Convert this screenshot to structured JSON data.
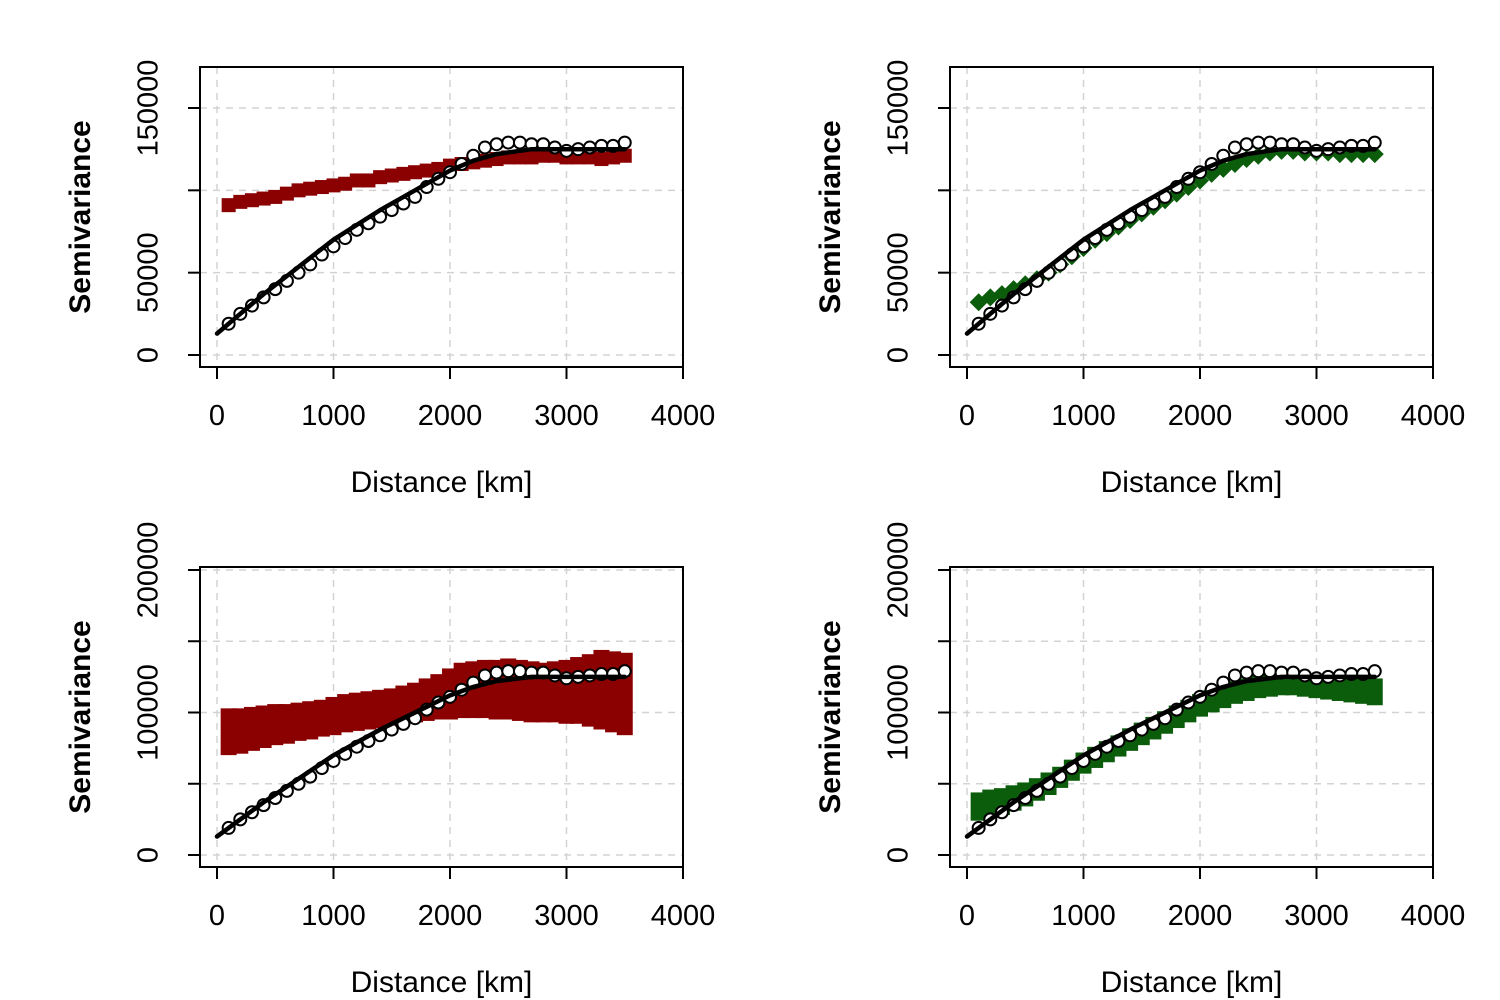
{
  "chart_data": [
    {
      "type": "scatter",
      "panel": "top-left",
      "xlabel": "Distance [km]",
      "ylabel": "Semivariance",
      "xlim": [
        0,
        4000
      ],
      "ylim": [
        0,
        150000
      ],
      "xticks": [
        0,
        1000,
        2000,
        3000,
        4000
      ],
      "xtick_labels": [
        "0",
        "1000",
        "2000",
        "3000",
        "4000"
      ],
      "yticks": [
        0,
        50000,
        100000,
        150000
      ],
      "ytick_labels": [
        "0",
        "50000",
        "",
        "150000"
      ],
      "grid": true,
      "series": [
        {
          "marker": "square",
          "color": "#8b0000",
          "band": false,
          "x": [
            100,
            200,
            300,
            400,
            500,
            600,
            700,
            800,
            900,
            1000,
            1100,
            1200,
            1300,
            1400,
            1500,
            1600,
            1700,
            1800,
            1900,
            2000,
            2100,
            2200,
            2300,
            2400,
            2500,
            2600,
            2700,
            2800,
            2900,
            3000,
            3100,
            3200,
            3300,
            3400,
            3500
          ],
          "y": [
            91000,
            93000,
            94000,
            95000,
            96000,
            98000,
            100000,
            101000,
            102000,
            103000,
            104000,
            106000,
            106000,
            108000,
            109000,
            110000,
            111000,
            112000,
            113000,
            115000,
            116000,
            117000,
            118000,
            119000,
            120000,
            120000,
            120000,
            121000,
            121000,
            120000,
            120000,
            120000,
            119000,
            120000,
            121000
          ]
        },
        {
          "marker": "circle",
          "color": "#000000",
          "band": false,
          "x": [
            100,
            200,
            300,
            400,
            500,
            600,
            700,
            800,
            900,
            1000,
            1100,
            1200,
            1300,
            1400,
            1500,
            1600,
            1700,
            1800,
            1900,
            2000,
            2100,
            2200,
            2300,
            2400,
            2500,
            2600,
            2700,
            2800,
            2900,
            3000,
            3100,
            3200,
            3300,
            3400,
            3500
          ],
          "y": [
            19000,
            25000,
            30000,
            35000,
            40000,
            45000,
            50000,
            55000,
            61000,
            66000,
            71000,
            76000,
            80000,
            84000,
            88000,
            92000,
            96000,
            102000,
            107000,
            111000,
            116000,
            121000,
            126000,
            128000,
            129000,
            129000,
            128000,
            128000,
            126000,
            124000,
            125000,
            126000,
            127000,
            127000,
            129000
          ]
        },
        {
          "marker": "line",
          "color": "#000000",
          "band": false,
          "x": [
            0,
            200,
            400,
            600,
            800,
            1000,
            1200,
            1400,
            1600,
            1800,
            2000,
            2200,
            2400,
            2600,
            2700,
            3500
          ],
          "y": [
            13000,
            25000,
            37000,
            48000,
            59000,
            70000,
            79000,
            88000,
            96000,
            104000,
            112000,
            118000,
            122000,
            124000,
            125000,
            125000
          ]
        }
      ]
    },
    {
      "type": "scatter",
      "panel": "top-right",
      "xlabel": "Distance [km]",
      "ylabel": "Semivariance",
      "xlim": [
        0,
        4000
      ],
      "ylim": [
        0,
        150000
      ],
      "xticks": [
        0,
        1000,
        2000,
        3000,
        4000
      ],
      "xtick_labels": [
        "0",
        "1000",
        "2000",
        "3000",
        "4000"
      ],
      "yticks": [
        0,
        50000,
        100000,
        150000
      ],
      "ytick_labels": [
        "0",
        "50000",
        "",
        "150000"
      ],
      "grid": true,
      "series": [
        {
          "marker": "diamond",
          "color": "#0b5d0b",
          "band": false,
          "x": [
            100,
            200,
            300,
            400,
            500,
            600,
            700,
            800,
            900,
            1000,
            1100,
            1200,
            1300,
            1400,
            1500,
            1600,
            1700,
            1800,
            1900,
            2000,
            2100,
            2200,
            2300,
            2400,
            2500,
            2600,
            2700,
            2800,
            2900,
            3000,
            3100,
            3200,
            3300,
            3400,
            3500
          ],
          "y": [
            32000,
            35000,
            37000,
            40000,
            43000,
            46000,
            50000,
            55000,
            60000,
            65000,
            70000,
            74000,
            78000,
            82000,
            86000,
            90000,
            94000,
            98000,
            102000,
            106000,
            110000,
            113000,
            116000,
            119000,
            121000,
            123000,
            124000,
            124000,
            123000,
            123000,
            123000,
            122000,
            122000,
            122000,
            122000
          ]
        },
        {
          "marker": "circle",
          "color": "#000000",
          "band": false,
          "x": [
            100,
            200,
            300,
            400,
            500,
            600,
            700,
            800,
            900,
            1000,
            1100,
            1200,
            1300,
            1400,
            1500,
            1600,
            1700,
            1800,
            1900,
            2000,
            2100,
            2200,
            2300,
            2400,
            2500,
            2600,
            2700,
            2800,
            2900,
            3000,
            3100,
            3200,
            3300,
            3400,
            3500
          ],
          "y": [
            19000,
            25000,
            30000,
            35000,
            40000,
            45000,
            50000,
            55000,
            61000,
            66000,
            71000,
            76000,
            80000,
            84000,
            88000,
            92000,
            96000,
            102000,
            107000,
            111000,
            116000,
            121000,
            126000,
            128000,
            129000,
            129000,
            128000,
            128000,
            126000,
            124000,
            125000,
            126000,
            127000,
            127000,
            129000
          ]
        },
        {
          "marker": "line",
          "color": "#000000",
          "band": false,
          "x": [
            0,
            200,
            400,
            600,
            800,
            1000,
            1200,
            1400,
            1600,
            1800,
            2000,
            2200,
            2400,
            2600,
            2700,
            3500
          ],
          "y": [
            13000,
            25000,
            37000,
            48000,
            59000,
            70000,
            79000,
            88000,
            96000,
            104000,
            112000,
            118000,
            122000,
            124000,
            125000,
            125000
          ]
        }
      ]
    },
    {
      "type": "scatter",
      "panel": "bottom-left",
      "xlabel": "Distance [km]",
      "ylabel": "Semivariance",
      "xlim": [
        0,
        4000
      ],
      "ylim": [
        0,
        200000
      ],
      "xticks": [
        0,
        1000,
        2000,
        3000,
        4000
      ],
      "xtick_labels": [
        "0",
        "1000",
        "2000",
        "3000",
        "4000"
      ],
      "yticks": [
        0,
        50000,
        100000,
        150000,
        200000
      ],
      "ytick_labels": [
        "0",
        "",
        "100000",
        "",
        "200000"
      ],
      "grid": true,
      "series": [
        {
          "marker": "square",
          "color": "#8b0000",
          "band": true,
          "x": [
            100,
            200,
            300,
            400,
            500,
            600,
            700,
            800,
            900,
            1000,
            1100,
            1200,
            1300,
            1400,
            1500,
            1600,
            1700,
            1800,
            1900,
            2000,
            2100,
            2200,
            2300,
            2400,
            2500,
            2600,
            2700,
            2800,
            2900,
            3000,
            3100,
            3200,
            3300,
            3400,
            3500
          ],
          "ymin": [
            75000,
            76000,
            78000,
            80000,
            82000,
            83000,
            85000,
            86000,
            88000,
            89000,
            91000,
            92000,
            93000,
            94000,
            96000,
            97000,
            98000,
            99000,
            100000,
            100000,
            101000,
            101000,
            101000,
            100000,
            100000,
            99000,
            98000,
            98000,
            98000,
            97000,
            97000,
            95000,
            93000,
            91000,
            89000
          ],
          "ymax": [
            98000,
            98000,
            99000,
            100000,
            101000,
            101000,
            102000,
            103000,
            104000,
            106000,
            108000,
            109000,
            110000,
            111000,
            112000,
            114000,
            116000,
            119000,
            122000,
            126000,
            130000,
            131000,
            132000,
            132000,
            133000,
            132000,
            131000,
            130000,
            131000,
            132000,
            134000,
            136000,
            139000,
            138000,
            137000
          ]
        },
        {
          "marker": "circle",
          "color": "#000000",
          "band": false,
          "x": [
            100,
            200,
            300,
            400,
            500,
            600,
            700,
            800,
            900,
            1000,
            1100,
            1200,
            1300,
            1400,
            1500,
            1600,
            1700,
            1800,
            1900,
            2000,
            2100,
            2200,
            2300,
            2400,
            2500,
            2600,
            2700,
            2800,
            2900,
            3000,
            3100,
            3200,
            3300,
            3400,
            3500
          ],
          "y": [
            19000,
            25000,
            30000,
            35000,
            40000,
            45000,
            50000,
            55000,
            61000,
            66000,
            71000,
            76000,
            80000,
            84000,
            88000,
            92000,
            96000,
            102000,
            107000,
            111000,
            116000,
            121000,
            126000,
            128000,
            129000,
            129000,
            128000,
            128000,
            126000,
            124000,
            125000,
            126000,
            127000,
            127000,
            129000
          ]
        },
        {
          "marker": "line",
          "color": "#000000",
          "band": false,
          "x": [
            0,
            200,
            400,
            600,
            800,
            1000,
            1200,
            1400,
            1600,
            1800,
            2000,
            2200,
            2400,
            2600,
            2700,
            3500
          ],
          "y": [
            13000,
            25000,
            37000,
            48000,
            59000,
            70000,
            79000,
            88000,
            96000,
            104000,
            112000,
            118000,
            122000,
            124000,
            125000,
            125000
          ]
        }
      ]
    },
    {
      "type": "scatter",
      "panel": "bottom-right",
      "xlabel": "Distance [km]",
      "ylabel": "Semivariance",
      "xlim": [
        0,
        4000
      ],
      "ylim": [
        0,
        200000
      ],
      "xticks": [
        0,
        1000,
        2000,
        3000,
        4000
      ],
      "xtick_labels": [
        "0",
        "1000",
        "2000",
        "3000",
        "4000"
      ],
      "yticks": [
        0,
        50000,
        100000,
        150000,
        200000
      ],
      "ytick_labels": [
        "0",
        "",
        "100000",
        "",
        "200000"
      ],
      "grid": true,
      "series": [
        {
          "marker": "square",
          "color": "#0b5d0b",
          "band": true,
          "x": [
            100,
            200,
            300,
            400,
            500,
            600,
            700,
            800,
            900,
            1000,
            1100,
            1200,
            1300,
            1400,
            1500,
            1600,
            1700,
            1800,
            1900,
            2000,
            2100,
            2200,
            2300,
            2400,
            2500,
            2600,
            2700,
            2800,
            2900,
            3000,
            3100,
            3200,
            3300,
            3400,
            3500
          ],
          "ymin": [
            29000,
            31000,
            33000,
            36000,
            39000,
            43000,
            47000,
            52000,
            57000,
            62000,
            66000,
            70000,
            74000,
            78000,
            82000,
            86000,
            90000,
            94000,
            98000,
            102000,
            105000,
            108000,
            111000,
            113000,
            115000,
            116000,
            117000,
            117000,
            116000,
            115000,
            114000,
            113000,
            112000,
            111000,
            110000
          ],
          "ymax": [
            39000,
            41000,
            42000,
            44000,
            46000,
            49000,
            53000,
            57000,
            62000,
            67000,
            71000,
            75000,
            79000,
            84000,
            88000,
            92000,
            96000,
            100000,
            104000,
            108000,
            111000,
            114000,
            117000,
            119000,
            121000,
            122000,
            123000,
            123000,
            122000,
            122000,
            121000,
            120000,
            119000,
            119000,
            119000
          ]
        },
        {
          "marker": "circle",
          "color": "#000000",
          "band": false,
          "x": [
            100,
            200,
            300,
            400,
            500,
            600,
            700,
            800,
            900,
            1000,
            1100,
            1200,
            1300,
            1400,
            1500,
            1600,
            1700,
            1800,
            1900,
            2000,
            2100,
            2200,
            2300,
            2400,
            2500,
            2600,
            2700,
            2800,
            2900,
            3000,
            3100,
            3200,
            3300,
            3400,
            3500
          ],
          "y": [
            19000,
            25000,
            30000,
            35000,
            40000,
            45000,
            50000,
            55000,
            61000,
            66000,
            71000,
            76000,
            80000,
            84000,
            88000,
            92000,
            96000,
            102000,
            107000,
            111000,
            116000,
            121000,
            126000,
            128000,
            129000,
            129000,
            128000,
            128000,
            126000,
            124000,
            125000,
            126000,
            127000,
            127000,
            129000
          ]
        },
        {
          "marker": "line",
          "color": "#000000",
          "band": false,
          "x": [
            0,
            200,
            400,
            600,
            800,
            1000,
            1200,
            1400,
            1600,
            1800,
            2000,
            2200,
            2400,
            2600,
            2700,
            3500
          ],
          "y": [
            13000,
            25000,
            37000,
            48000,
            59000,
            70000,
            79000,
            88000,
            96000,
            104000,
            112000,
            118000,
            122000,
            124000,
            125000,
            125000
          ]
        }
      ]
    }
  ]
}
